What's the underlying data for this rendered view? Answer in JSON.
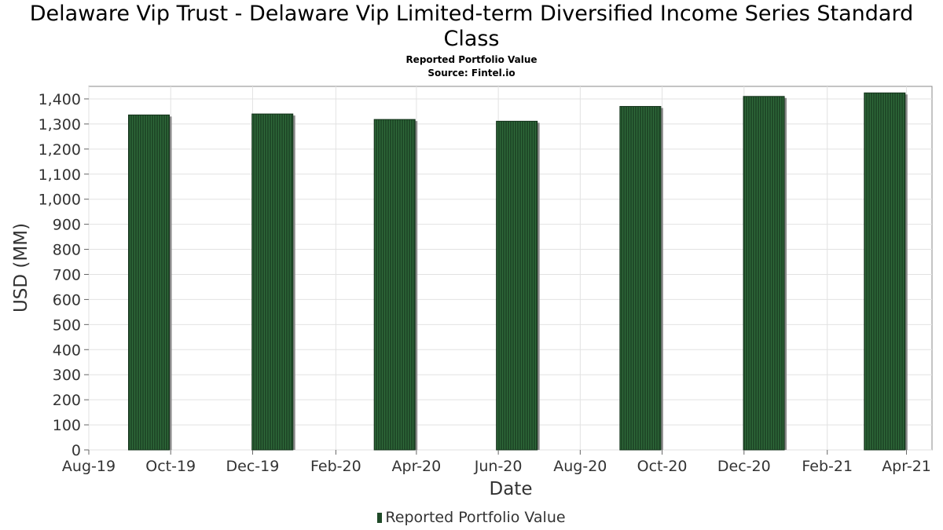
{
  "chart_data": {
    "type": "bar",
    "title_line1": "Delaware Vip Trust - Delaware Vip Limited-term Diversified Income Series Standard",
    "title_line2": "Class",
    "subtitle_line1": "Reported Portfolio Value",
    "subtitle_line2": "Source: Fintel.io",
    "xlabel": "Date",
    "ylabel": "USD (MM)",
    "ylim": [
      0,
      1450
    ],
    "yticks": [
      0,
      100,
      200,
      300,
      400,
      500,
      600,
      700,
      800,
      900,
      1000,
      1100,
      1200,
      1300,
      1400
    ],
    "ytick_labels": [
      "0",
      "100",
      "200",
      "300",
      "400",
      "500",
      "600",
      "700",
      "800",
      "900",
      "1,000",
      "1,100",
      "1,200",
      "1,300",
      "1,400"
    ],
    "xlim": [
      "2019-08-01",
      "2021-04-20"
    ],
    "xticks": [
      "2019-08-01",
      "2019-10-01",
      "2019-12-01",
      "2020-02-01",
      "2020-04-01",
      "2020-06-01",
      "2020-08-01",
      "2020-10-01",
      "2020-12-01",
      "2021-02-01",
      "2021-04-01"
    ],
    "xtick_labels": [
      "Aug-19",
      "Oct-19",
      "Dec-19",
      "Feb-20",
      "Apr-20",
      "Jun-20",
      "Aug-20",
      "Oct-20",
      "Dec-20",
      "Feb-21",
      "Apr-21"
    ],
    "grid": true,
    "legend_position": "bottom-center",
    "series": [
      {
        "name": "Reported Portfolio Value",
        "color": "#1f4a28",
        "x": [
          "2019-09-30",
          "2019-12-31",
          "2020-03-31",
          "2020-06-30",
          "2020-09-30",
          "2020-12-31",
          "2021-03-31"
        ],
        "values": [
          1336,
          1340,
          1318,
          1311,
          1370,
          1410,
          1424
        ]
      }
    ]
  }
}
